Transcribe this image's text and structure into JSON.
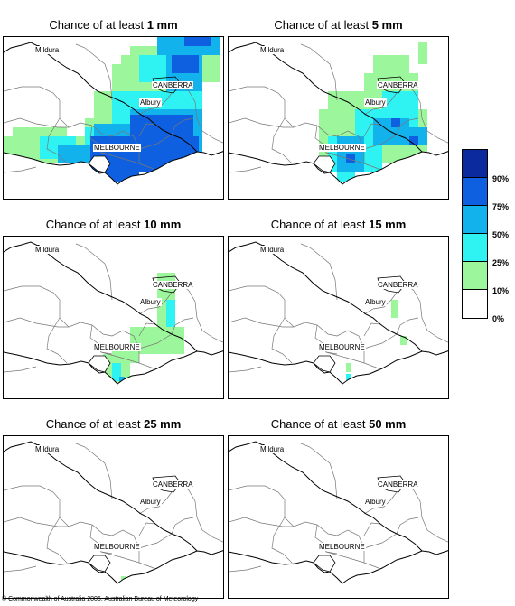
{
  "panels": [
    {
      "prefix": "Chance of at least ",
      "amount": "1 mm"
    },
    {
      "prefix": "Chance of at least ",
      "amount": "5 mm"
    },
    {
      "prefix": "Chance of at least ",
      "amount": "10 mm"
    },
    {
      "prefix": "Chance of at least ",
      "amount": "15 mm"
    },
    {
      "prefix": "Chance of at least ",
      "amount": "25 mm"
    },
    {
      "prefix": "Chance of at least ",
      "amount": "50 mm"
    }
  ],
  "cities": {
    "mildura": "Mildura",
    "canberra": "CANBERRA",
    "albury": "Albury",
    "melbourne": "MELBOURNE"
  },
  "legend": {
    "labels": [
      "90%",
      "75%",
      "50%",
      "25%",
      "10%",
      "0%"
    ],
    "colors": [
      "#0a2a9e",
      "#0f60e0",
      "#12b2ec",
      "#2ff3f3",
      "#9cf79c",
      "#ffffff"
    ]
  },
  "copyright": "© Commonwealth of Australia 2006, Australian Bureau of Meteorology"
}
